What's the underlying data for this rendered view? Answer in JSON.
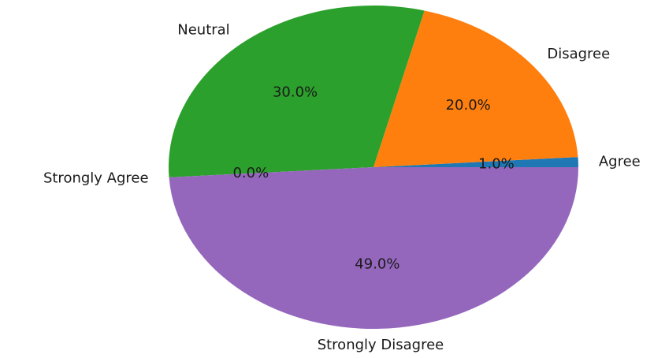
{
  "chart_data": {
    "type": "pie",
    "categories": [
      "Agree",
      "Disagree",
      "Neutral",
      "Strongly Agree",
      "Strongly Disagree"
    ],
    "values": [
      1.0,
      20.0,
      30.0,
      0.0,
      49.0
    ],
    "percent_labels": [
      "1.0%",
      "20.0%",
      "30.0%",
      "0.0%",
      "49.0%"
    ],
    "colors": [
      "#1f77b4",
      "#ff7f0e",
      "#2ca02c",
      "#d62728",
      "#9467bd"
    ],
    "title": "",
    "start_angle_degrees": 0,
    "direction": "counterclockwise",
    "legend": "none"
  }
}
